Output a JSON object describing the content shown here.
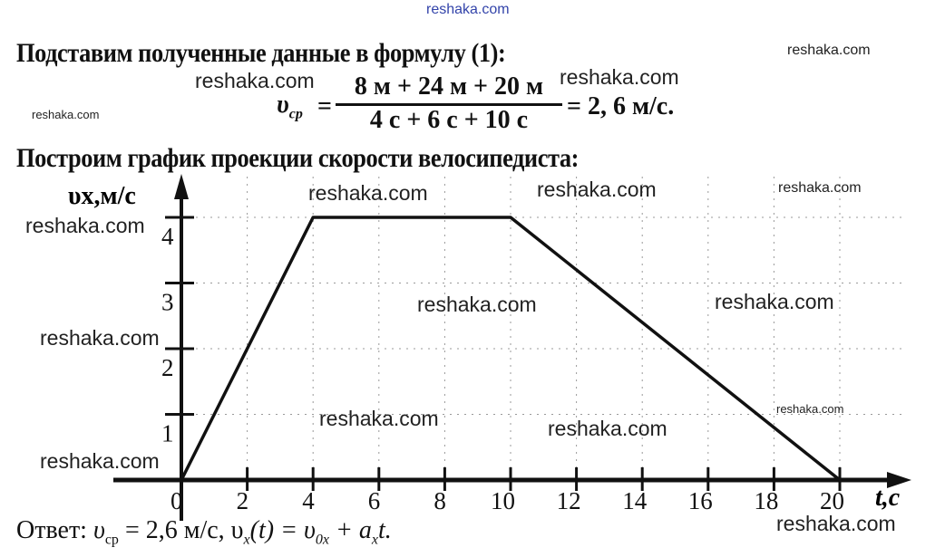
{
  "header_watermark": "reshaka.com",
  "line1": "Подставим полученные данные в формулу (1):",
  "formula": {
    "lhs": "υ",
    "lhs_sub": "ср",
    "eq": "=",
    "numerator": "8 м + 24 м + 20 м",
    "denominator": "4 с + 6 с + 10 с",
    "result": "= 2, 6 м/с."
  },
  "line2": "Построим график проекции скорости велосипедиста:",
  "answer": {
    "label": "Ответ:",
    "text": "υ",
    "sub1": "ср",
    "mid": " = 2,6 м/с, υ",
    "sub2": "x",
    "mid2": "(t) = υ",
    "sub3": "0x",
    "mid3": " + a",
    "sub4": "x",
    "end": "t."
  },
  "watermarks": [
    "reshaka.com",
    "reshaka.com",
    "reshaka.com",
    "reshaka.com",
    "reshaka.com",
    "reshaka.com",
    "reshaka.com",
    "reshaka.com",
    "reshaka.com",
    "reshaka.com",
    "reshaka.com",
    "reshaka.com",
    "reshaka.com",
    "reshaka.com"
  ],
  "chart_data": {
    "type": "line",
    "title": "",
    "xlabel": "t,c",
    "ylabel": "υx,м/с",
    "xlim": [
      0,
      20
    ],
    "ylim": [
      0,
      4
    ],
    "x_ticks": [
      "0",
      "2",
      "4",
      "6",
      "8",
      "10",
      "12",
      "14",
      "16",
      "18",
      "20"
    ],
    "y_ticks": [
      "1",
      "2",
      "3",
      "4"
    ],
    "grid": true,
    "series": [
      {
        "x": [
          0,
          4,
          10,
          20
        ],
        "y": [
          0,
          4,
          4,
          0
        ]
      }
    ],
    "colors": {
      "line": "#111111",
      "grid": "#999999"
    }
  }
}
